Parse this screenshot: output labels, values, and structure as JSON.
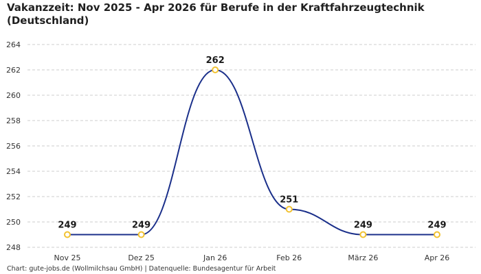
{
  "title": "Vakanzzeit: Nov 2025 - Apr 2026 für Berufe in der Kraftfahrzeugtechnik (Deutschland)",
  "footer": "Chart: gute-jobs.de (Wollmilchsau GmbH) | Datenquelle: Bundesagentur für Arbeit",
  "colors": {
    "line": "#1a2f8a",
    "marker_fill": "#ffffff",
    "marker_stroke": "#f2c230",
    "grid": "#cccccc"
  },
  "chart_data": {
    "type": "line",
    "categories": [
      "Nov 25",
      "Dez 25",
      "Jan 26",
      "Feb 26",
      "März 26",
      "Apr 26"
    ],
    "values": [
      249,
      249,
      262,
      251,
      249,
      249
    ],
    "data_labels": [
      "249",
      "249",
      "262",
      "251",
      "249",
      "249"
    ],
    "ylim": [
      248,
      264
    ],
    "yticks": [
      248,
      250,
      252,
      254,
      256,
      258,
      260,
      262,
      264
    ],
    "ytick_labels": [
      "248",
      "250",
      "252",
      "254",
      "256",
      "258",
      "260",
      "262",
      "264"
    ],
    "grid": true,
    "smooth": true
  }
}
